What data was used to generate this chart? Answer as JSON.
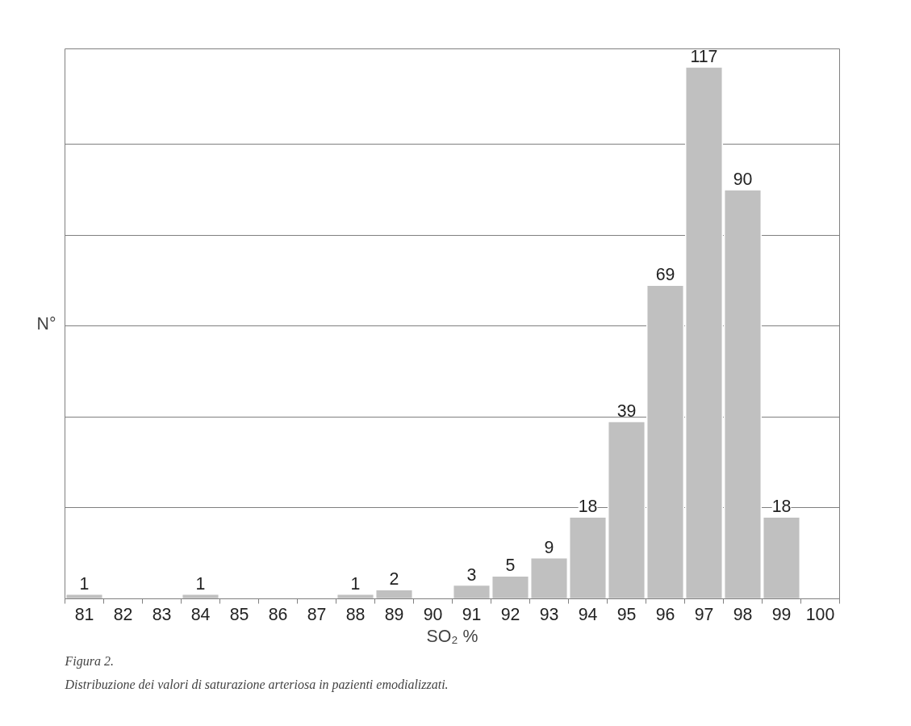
{
  "chart_data": {
    "type": "bar",
    "categories": [
      "81",
      "82",
      "83",
      "84",
      "85",
      "86",
      "87",
      "88",
      "89",
      "90",
      "91",
      "92",
      "93",
      "94",
      "95",
      "96",
      "97",
      "98",
      "99",
      "100"
    ],
    "values": [
      1,
      0,
      0,
      1,
      0,
      0,
      0,
      1,
      2,
      0,
      3,
      5,
      9,
      18,
      39,
      69,
      117,
      90,
      18,
      null
    ],
    "value_labels": [
      "1",
      null,
      null,
      "1",
      null,
      null,
      null,
      "1",
      "2",
      null,
      "3",
      "5",
      "9",
      "18",
      "39",
      "69",
      "117",
      "90",
      "18",
      null
    ],
    "color": "#c0c0c0",
    "xlabel": "SO₂ %",
    "ylabel": "N°",
    "ylim": [
      0,
      121
    ],
    "yticks": [
      {
        "value": 0,
        "label": null
      },
      {
        "value": 20,
        "label": null
      },
      {
        "value": 40,
        "label": null
      },
      {
        "value": 60,
        "label": null
      },
      {
        "value": 80,
        "label": null
      },
      {
        "value": 100,
        "label": null
      }
    ],
    "tick_labels": "x",
    "grid": "y",
    "annotations": [
      "Figura 2.",
      "Distribuzione dei valori di saturazione arteriosa in pazienti emodializzati."
    ]
  }
}
